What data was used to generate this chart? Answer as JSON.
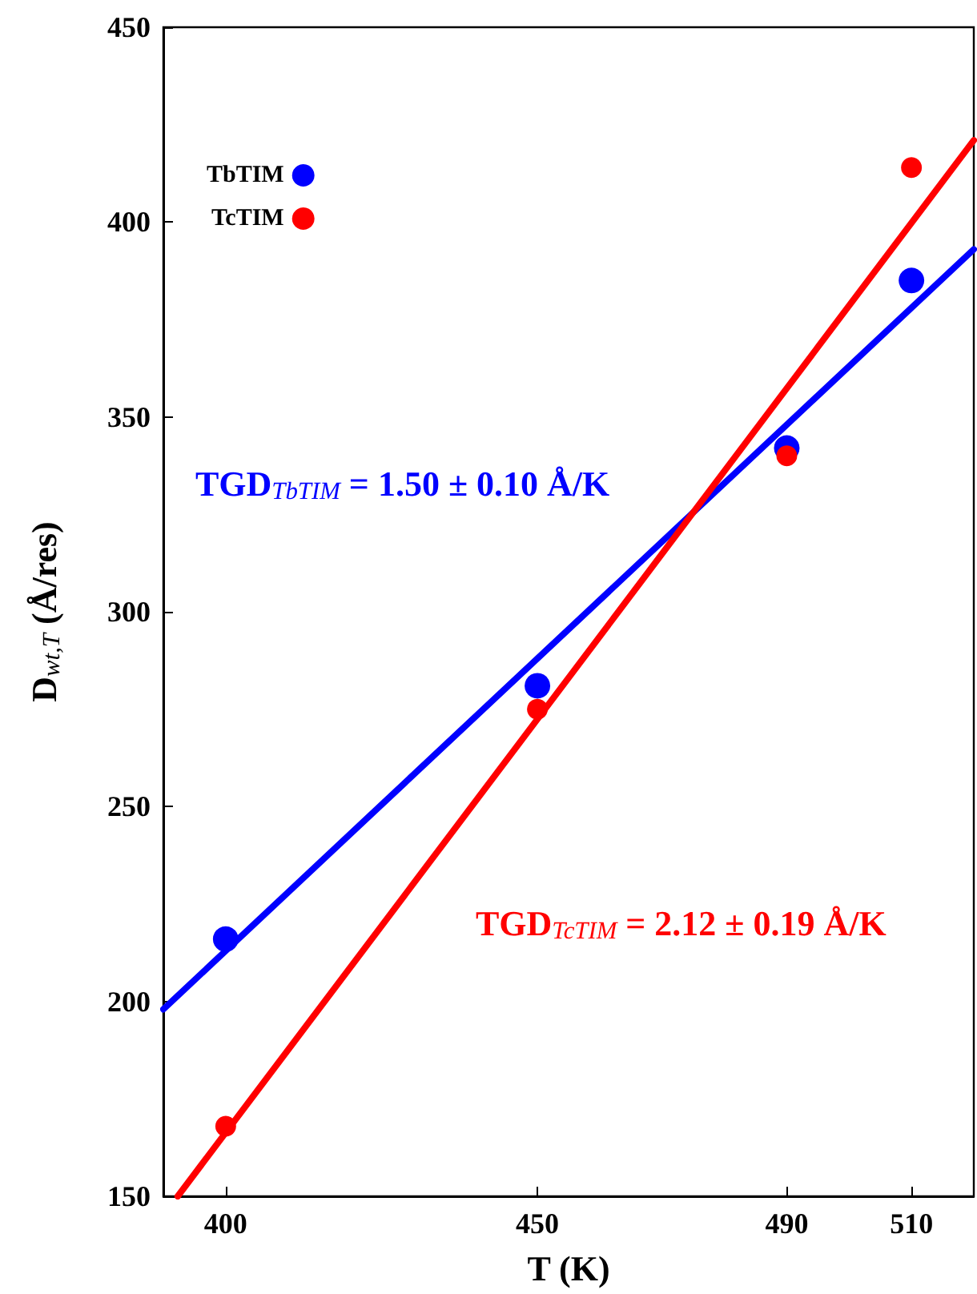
{
  "chart_data": {
    "type": "scatter",
    "xlabel": "T (K)",
    "ylabel": "D$_{wt,T}$ (Å/res)",
    "xlim": [
      390,
      520
    ],
    "xticks": [
      400,
      450,
      490,
      510
    ],
    "ylim": [
      150,
      450
    ],
    "yticks": [
      150,
      200,
      250,
      300,
      350,
      400,
      450
    ],
    "grid": false,
    "legend": "top left",
    "marker": "circle",
    "annotations": [
      "TGD$_{TbTIM}$ = 1.50 ± 0.10 Å/K",
      "TGD$_{TcTIM}$ = 2.12 ± 0.19 Å/K"
    ],
    "series": [
      {
        "name": "TbTIM",
        "color": "#0000ff",
        "x": [
          400,
          450,
          490,
          510
        ],
        "values": [
          216,
          281,
          342,
          385
        ]
      },
      {
        "name": "TcTIM",
        "color": "#ff0000",
        "x": [
          400,
          450,
          490,
          510
        ],
        "values": [
          168,
          275,
          340,
          414
        ]
      },
      {
        "type": "line",
        "color": "#0000ff",
        "marker": "none",
        "line_style": "solid",
        "x": [
          390,
          520
        ],
        "values": [
          198,
          393
        ]
      },
      {
        "type": "line",
        "color": "#ff0000",
        "marker": "none",
        "line_style": "solid",
        "x": [
          392.3,
          520
        ],
        "values": [
          150,
          421
        ]
      }
    ]
  }
}
